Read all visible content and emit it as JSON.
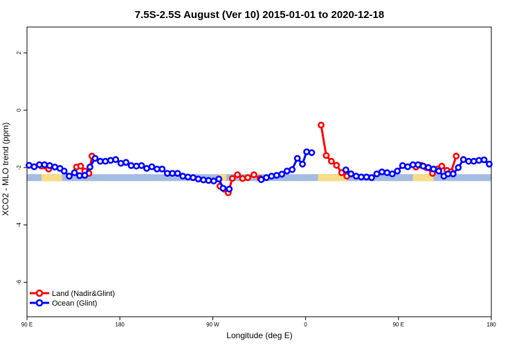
{
  "chart_data": {
    "type": "line",
    "title": "7.5S-2.5S August (Ver 10)   2015-01-01 to 2020-12-18",
    "xlabel": "Longitude (deg E)",
    "ylabel": "XCO2 - MLO trend (ppm)",
    "xlim": [
      90,
      540
    ],
    "ylim": [
      -7.2,
      2.9
    ],
    "xticks": [
      {
        "value": 90,
        "label": "90 E"
      },
      {
        "value": 180,
        "label": "180"
      },
      {
        "value": 270,
        "label": "90 W"
      },
      {
        "value": 360,
        "label": "0"
      },
      {
        "value": 450,
        "label": "90 E"
      },
      {
        "value": 540,
        "label": "180"
      }
    ],
    "yticks": [
      {
        "value": 2,
        "label": "2"
      },
      {
        "value": 0,
        "label": "0"
      },
      {
        "value": -2,
        "label": "-2"
      },
      {
        "value": -4,
        "label": "-4"
      },
      {
        "value": -6,
        "label": "-6"
      }
    ],
    "band": {
      "y_center": -2.35,
      "ocean_color": "#a4bce0",
      "land_color": "#f8dc86"
    },
    "land_band_segments": [
      [
        104,
        124
      ],
      [
        276,
        283
      ],
      [
        372,
        400
      ],
      [
        464,
        484
      ]
    ],
    "legend": {
      "position": "bottom-left"
    },
    "series": [
      {
        "name": "Land (Nadir&Glint)",
        "color": "#ff0000",
        "segments": [
          [
            [
              104,
              -1.95
            ],
            [
              108,
              -1.95
            ],
            [
              111,
              -2.05
            ]
          ],
          [
            [
              138,
              -1.98
            ],
            [
              142,
              -1.95
            ],
            [
              146,
              -2.12
            ],
            [
              150,
              -2.2
            ],
            [
              153,
              -1.6
            ]
          ],
          [
            [
              277,
              -2.65
            ],
            [
              281,
              -2.75
            ],
            [
              285,
              -2.88
            ],
            [
              289,
              -2.38
            ],
            [
              294,
              -2.25
            ],
            [
              299,
              -2.38
            ],
            [
              304,
              -2.35
            ],
            [
              310,
              -2.25
            ],
            [
              316,
              -2.38
            ]
          ],
          [
            [
              375,
              -0.52
            ],
            [
              380,
              -1.58
            ],
            [
              385,
              -1.78
            ],
            [
              390,
              -1.92
            ],
            [
              395,
              -2.18
            ],
            [
              400,
              -2.3
            ]
          ],
          [
            [
              467,
              -1.98
            ],
            [
              472,
              -1.92
            ],
            [
              477,
              -2.0
            ],
            [
              483,
              -2.2
            ],
            [
              488,
              -2.05
            ],
            [
              492,
              -1.95
            ],
            [
              497,
              -2.1
            ],
            [
              501,
              -2.15
            ],
            [
              506,
              -1.6
            ]
          ]
        ]
      },
      {
        "name": "Ocean (Glint)",
        "color": "#0000ff",
        "segments": [
          [
            [
              92,
              -1.92
            ],
            [
              97,
              -1.97
            ],
            [
              102,
              -1.9
            ],
            [
              107,
              -1.9
            ],
            [
              112,
              -1.93
            ],
            [
              117,
              -1.98
            ],
            [
              122,
              -2.03
            ],
            [
              126,
              -2.12
            ],
            [
              131,
              -2.3
            ],
            [
              136,
              -2.18
            ],
            [
              141,
              -2.28
            ],
            [
              146,
              -2.27
            ],
            [
              151,
              -1.98
            ],
            [
              156,
              -1.68
            ],
            [
              161,
              -1.78
            ],
            [
              166,
              -1.78
            ],
            [
              171,
              -1.75
            ],
            [
              176,
              -1.72
            ],
            [
              181,
              -1.85
            ],
            [
              186,
              -1.82
            ],
            [
              191,
              -1.93
            ],
            [
              196,
              -1.95
            ],
            [
              201,
              -1.93
            ],
            [
              206,
              -2.03
            ],
            [
              211,
              -1.97
            ],
            [
              216,
              -2.05
            ],
            [
              221,
              -2.05
            ],
            [
              226,
              -2.2
            ],
            [
              231,
              -2.2
            ],
            [
              236,
              -2.2
            ],
            [
              241,
              -2.3
            ],
            [
              246,
              -2.33
            ],
            [
              251,
              -2.35
            ],
            [
              256,
              -2.4
            ],
            [
              261,
              -2.43
            ],
            [
              266,
              -2.45
            ],
            [
              271,
              -2.47
            ],
            [
              276,
              -2.4
            ],
            [
              280,
              -2.72
            ],
            [
              286,
              -2.75
            ]
          ],
          [
            [
              317,
              -2.42
            ],
            [
              322,
              -2.35
            ],
            [
              327,
              -2.3
            ],
            [
              332,
              -2.27
            ],
            [
              337,
              -2.23
            ],
            [
              342,
              -2.12
            ],
            [
              347,
              -2.07
            ],
            [
              352,
              -1.68
            ],
            [
              357,
              -1.88
            ],
            [
              361,
              -1.45
            ],
            [
              366,
              -1.48
            ]
          ],
          [
            [
              399,
              -2.08
            ],
            [
              404,
              -2.22
            ],
            [
              409,
              -2.3
            ],
            [
              414,
              -2.33
            ],
            [
              419,
              -2.33
            ],
            [
              424,
              -2.35
            ],
            [
              429,
              -2.22
            ],
            [
              434,
              -2.15
            ],
            [
              439,
              -2.18
            ],
            [
              444,
              -2.22
            ],
            [
              449,
              -2.12
            ],
            [
              454,
              -1.93
            ],
            [
              459,
              -1.97
            ],
            [
              464,
              -1.9
            ],
            [
              469,
              -1.9
            ],
            [
              474,
              -1.95
            ],
            [
              479,
              -2.0
            ],
            [
              484,
              -2.05
            ],
            [
              489,
              -2.12
            ],
            [
              494,
              -2.3
            ],
            [
              498,
              -2.22
            ],
            [
              503,
              -2.22
            ],
            [
              508,
              -2.0
            ],
            [
              513,
              -1.72
            ],
            [
              518,
              -1.78
            ],
            [
              523,
              -1.78
            ],
            [
              528,
              -1.75
            ],
            [
              533,
              -1.73
            ],
            [
              538,
              -1.88
            ]
          ]
        ]
      }
    ]
  }
}
